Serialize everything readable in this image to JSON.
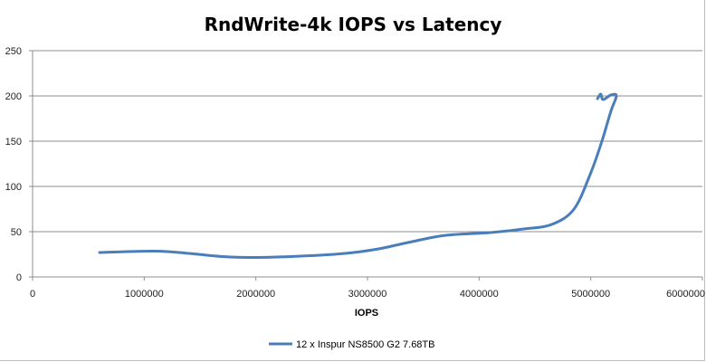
{
  "chart_data": {
    "type": "line",
    "title": "RndWrite-4k IOPS vs Latency",
    "xlabel": "IOPS",
    "ylabel": "",
    "xlim": [
      0,
      6000000
    ],
    "ylim": [
      0,
      250
    ],
    "x_ticks": [
      "0",
      "1000000",
      "2000000",
      "3000000",
      "4000000",
      "5000000",
      "6000000"
    ],
    "y_ticks": [
      "0",
      "50",
      "100",
      "150",
      "200",
      "250"
    ],
    "grid": "horizontal",
    "legend_position": "bottom",
    "series": [
      {
        "name": "12 x Inspur NS8500 G2 7.68TB",
        "color": "#4a7ebb",
        "points": [
          [
            600000,
            27
          ],
          [
            1100000,
            28.5
          ],
          [
            1400000,
            26
          ],
          [
            1700000,
            22.5
          ],
          [
            2000000,
            21.5
          ],
          [
            2400000,
            23
          ],
          [
            2800000,
            26
          ],
          [
            3100000,
            31
          ],
          [
            3400000,
            39
          ],
          [
            3700000,
            46
          ],
          [
            4100000,
            49
          ],
          [
            4400000,
            53
          ],
          [
            4650000,
            58
          ],
          [
            4850000,
            75
          ],
          [
            5000000,
            115
          ],
          [
            5100000,
            150
          ],
          [
            5180000,
            183
          ],
          [
            5230000,
            200
          ],
          [
            5180000,
            201
          ],
          [
            5110000,
            196
          ],
          [
            5090000,
            202
          ],
          [
            5060000,
            197
          ]
        ]
      }
    ]
  }
}
